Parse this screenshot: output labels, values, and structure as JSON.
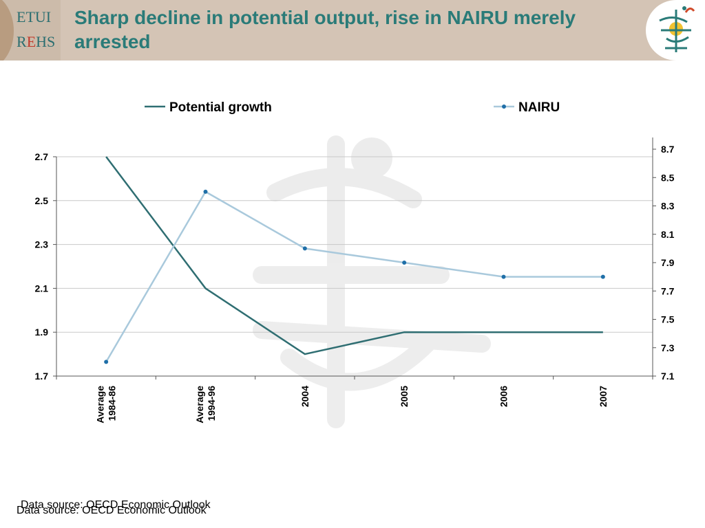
{
  "header": {
    "title": "Sharp decline in potential output, rise in NAIRU merely arrested",
    "logo_left": {
      "line1": "ETUI",
      "line2_a": "R",
      "line2_b": "E",
      "line2_c": "HS"
    }
  },
  "footer": {
    "source": "Data source: OECD Economic Outlook"
  },
  "colors": {
    "header_bg": "#d4c4b5",
    "title": "#2a7b78",
    "potential": "#2f6e72",
    "nairu": "#a9c9dc",
    "nairu_marker": "#1f6fa8"
  },
  "chart_data": {
    "type": "line",
    "categories": [
      "Average 1984-86",
      "Average 1994-96",
      "2004",
      "2005",
      "2006",
      "2007"
    ],
    "category_labels": [
      [
        "Average",
        "1984-86"
      ],
      [
        "Average",
        "1994-96"
      ],
      [
        "2004"
      ],
      [
        "2005"
      ],
      [
        "2006"
      ],
      [
        "2007"
      ]
    ],
    "series": [
      {
        "name": "Potential growth",
        "axis": "left",
        "values": [
          2.7,
          2.1,
          1.8,
          1.9,
          1.9,
          1.9
        ],
        "marker": false
      },
      {
        "name": "NAIRU",
        "axis": "right",
        "values": [
          7.2,
          8.4,
          8.0,
          7.9,
          7.8,
          7.8
        ],
        "marker": true
      }
    ],
    "y_left": {
      "ylim": [
        1.7,
        2.7
      ],
      "ticks": [
        "1.7",
        "1.9",
        "2.1",
        "2.3",
        "2.5",
        "2.7"
      ]
    },
    "y_right": {
      "ylim": [
        7.1,
        8.7
      ],
      "ticks": [
        "7.1",
        "7.3",
        "7.5",
        "7.7",
        "7.9",
        "8.1",
        "8.3",
        "8.5",
        "8.7"
      ]
    },
    "grid": true,
    "legend": "top"
  }
}
